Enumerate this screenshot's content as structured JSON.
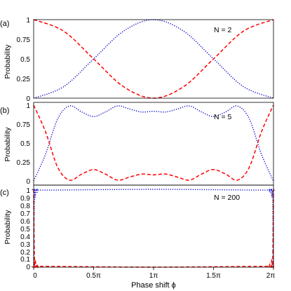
{
  "chart_data": [
    {
      "type": "line",
      "panel_label": "(a)",
      "annotation": "N = 2",
      "N": 2,
      "ylabel": "Probability",
      "xlim": [
        0,
        6.283185
      ],
      "ylim": [
        0,
        1
      ],
      "yticks": [
        "0",
        "0.25",
        "0.5",
        "0.75",
        "1"
      ],
      "series": [
        {
          "color": "#0000cc",
          "style": "dotted",
          "points": [
            [
              0,
              0
            ],
            [
              0.785,
              0.146
            ],
            [
              1.571,
              0.5
            ],
            [
              2.356,
              0.854
            ],
            [
              3.142,
              1
            ],
            [
              3.927,
              0.854
            ],
            [
              4.712,
              0.5
            ],
            [
              5.498,
              0.146
            ],
            [
              6.283,
              0
            ]
          ]
        },
        {
          "color": "#ff0000",
          "style": "dashed",
          "points": [
            [
              0,
              1
            ],
            [
              0.785,
              0.854
            ],
            [
              1.571,
              0.5
            ],
            [
              2.356,
              0.146
            ],
            [
              3.142,
              0
            ],
            [
              3.927,
              0.146
            ],
            [
              4.712,
              0.5
            ],
            [
              5.498,
              0.854
            ],
            [
              6.283,
              1
            ]
          ]
        }
      ]
    },
    {
      "type": "line",
      "panel_label": "(b)",
      "annotation": "N = 5",
      "N": 5,
      "ylabel": "Probability",
      "xlim": [
        0,
        6.283185
      ],
      "ylim": [
        0,
        1
      ],
      "yticks": [
        "0",
        "0.25",
        "0.5",
        "0.75",
        "1"
      ],
      "series": [
        {
          "color": "#0000cc",
          "style": "dotted",
          "points": [
            [
              0,
              0
            ],
            [
              0.31,
              0.35
            ],
            [
              0.63,
              0.82
            ],
            [
              0.94,
              0.99
            ],
            [
              1.26,
              0.91
            ],
            [
              1.57,
              0.85
            ],
            [
              1.88,
              0.91
            ],
            [
              2.2,
              0.99
            ],
            [
              2.51,
              0.95
            ],
            [
              2.83,
              0.91
            ],
            [
              3.14,
              0.92
            ],
            [
              3.46,
              0.91
            ],
            [
              3.77,
              0.95
            ],
            [
              4.08,
              0.99
            ],
            [
              4.4,
              0.91
            ],
            [
              4.71,
              0.85
            ],
            [
              5.03,
              0.91
            ],
            [
              5.34,
              0.99
            ],
            [
              5.65,
              0.82
            ],
            [
              5.97,
              0.35
            ],
            [
              6.28,
              0
            ]
          ]
        },
        {
          "color": "#ff0000",
          "style": "dashed",
          "points": [
            [
              0,
              1
            ],
            [
              0.31,
              0.65
            ],
            [
              0.63,
              0.18
            ],
            [
              0.94,
              0.01
            ],
            [
              1.26,
              0.09
            ],
            [
              1.57,
              0.15
            ],
            [
              1.88,
              0.09
            ],
            [
              2.2,
              0.01
            ],
            [
              2.51,
              0.05
            ],
            [
              2.83,
              0.09
            ],
            [
              3.14,
              0.08
            ],
            [
              3.46,
              0.09
            ],
            [
              3.77,
              0.05
            ],
            [
              4.08,
              0.01
            ],
            [
              4.4,
              0.09
            ],
            [
              4.71,
              0.15
            ],
            [
              5.03,
              0.09
            ],
            [
              5.34,
              0.01
            ],
            [
              5.65,
              0.18
            ],
            [
              5.97,
              0.65
            ],
            [
              6.28,
              1
            ]
          ]
        }
      ]
    },
    {
      "type": "line",
      "panel_label": "(c)",
      "annotation": "N = 200",
      "N": 200,
      "ylabel": "Probability",
      "xlabel": "Phase shift ϕ",
      "xlim": [
        0,
        6.283185
      ],
      "ylim": [
        0,
        1
      ],
      "yticks": [
        "0",
        "0.1",
        "0.2",
        "0.3",
        "0.4",
        "0.5",
        "0.6",
        "0.7",
        "0.8",
        "0.9",
        "1"
      ],
      "xticks": [
        "0",
        "0.5π",
        "1π",
        "1.5π",
        "2π"
      ],
      "series": [
        {
          "color": "#0000cc",
          "style": "dotted",
          "points": [
            [
              0,
              0
            ],
            [
              0.01,
              0.55
            ],
            [
              0.025,
              0.97
            ],
            [
              0.04,
              0.9
            ],
            [
              0.06,
              1
            ],
            [
              0.09,
              0.96
            ],
            [
              0.12,
              1
            ],
            [
              0.2,
              0.99
            ],
            [
              3.14,
              1
            ],
            [
              6.08,
              0.99
            ],
            [
              6.16,
              1
            ],
            [
              6.19,
              0.96
            ],
            [
              6.22,
              1
            ],
            [
              6.24,
              0.9
            ],
            [
              6.26,
              0.97
            ],
            [
              6.273,
              0.55
            ],
            [
              6.283,
              0
            ]
          ]
        },
        {
          "color": "#ff0000",
          "style": "dashed",
          "points": [
            [
              0,
              1
            ],
            [
              0.01,
              0.45
            ],
            [
              0.025,
              0.03
            ],
            [
              0.04,
              0.1
            ],
            [
              0.06,
              0
            ],
            [
              0.09,
              0.04
            ],
            [
              0.12,
              0
            ],
            [
              0.2,
              0.01
            ],
            [
              3.14,
              0
            ],
            [
              6.08,
              0.01
            ],
            [
              6.16,
              0
            ],
            [
              6.19,
              0.04
            ],
            [
              6.22,
              0
            ],
            [
              6.24,
              0.1
            ],
            [
              6.26,
              0.03
            ],
            [
              6.273,
              0.45
            ],
            [
              6.283,
              1
            ]
          ]
        }
      ]
    }
  ]
}
